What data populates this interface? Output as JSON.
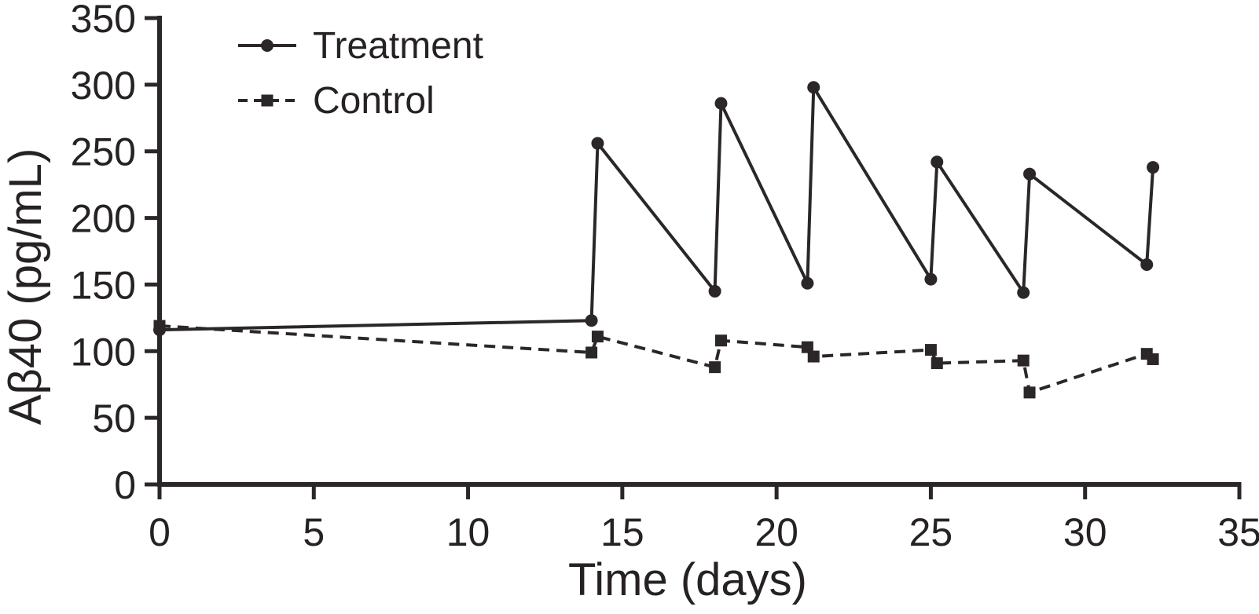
{
  "figure": {
    "background": "#ffffff",
    "ink_color": "#2b2728",
    "text_color": "#262223"
  },
  "chart_data": {
    "type": "line",
    "title": "",
    "xlabel": "Time (days)",
    "ylabel": "Aβ40 (pg/mL)",
    "xlim": [
      0,
      35
    ],
    "ylim": [
      0,
      350
    ],
    "x_ticks": [
      0,
      5,
      10,
      15,
      20,
      25,
      30,
      35
    ],
    "y_ticks": [
      0,
      50,
      100,
      150,
      200,
      250,
      300,
      350
    ],
    "grid": false,
    "legend_position": "top-left-inside",
    "legend": [
      {
        "label": "Treatment",
        "line_style": "solid",
        "marker": "circle"
      },
      {
        "label": "Control",
        "line_style": "dashed",
        "marker": "square"
      }
    ],
    "series": [
      {
        "name": "Treatment",
        "line_style": "solid",
        "marker": "circle",
        "color": "#2b2728",
        "points": [
          [
            0,
            116
          ],
          [
            14,
            123
          ],
          [
            14.2,
            256
          ],
          [
            18,
            145
          ],
          [
            18.2,
            286
          ],
          [
            21,
            151
          ],
          [
            21.2,
            298
          ],
          [
            25,
            154
          ],
          [
            25.2,
            242
          ],
          [
            28,
            144
          ],
          [
            28.2,
            233
          ],
          [
            32,
            165
          ],
          [
            32.2,
            238
          ]
        ]
      },
      {
        "name": "Control",
        "line_style": "dashed",
        "marker": "square",
        "color": "#2b2728",
        "points": [
          [
            0,
            119
          ],
          [
            14,
            99
          ],
          [
            14.2,
            111
          ],
          [
            18,
            88
          ],
          [
            18.2,
            108
          ],
          [
            21,
            103
          ],
          [
            21.2,
            96
          ],
          [
            25,
            101
          ],
          [
            25.2,
            91
          ],
          [
            28,
            93
          ],
          [
            28.2,
            69
          ],
          [
            32,
            98
          ],
          [
            32.2,
            94
          ]
        ]
      }
    ]
  }
}
